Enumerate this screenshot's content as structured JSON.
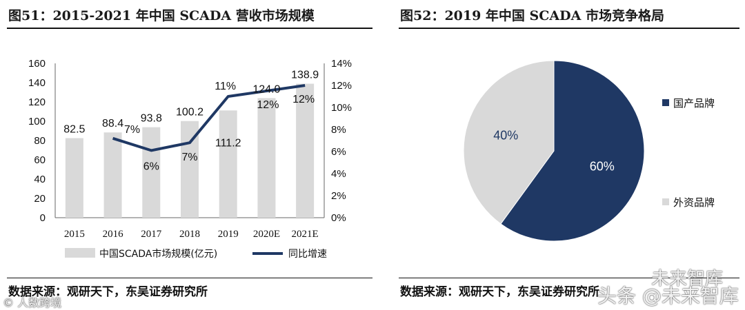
{
  "left_panel": {
    "title": "图51：2015-2021 年中国 SCADA 营收市场规模",
    "source": "数据来源：观研天下，东吴证券研究所"
  },
  "right_panel": {
    "title": "图52：2019 年中国 SCADA 市场竞争格局",
    "source": "数据来源：观研天下，东吴证券研究所"
  },
  "watermarks": {
    "left": "© 人数跨境",
    "top_right": "未来智库",
    "bottom_right": "头条 @未来智库"
  },
  "colors": {
    "bar": "#d9d9d9",
    "line": "#1f3864",
    "pie_domestic": "#1f3864",
    "pie_foreign": "#d9d9d9"
  },
  "chart_data": [
    {
      "type": "bar",
      "title": "2015-2021 年中国 SCADA 营收市场规模",
      "categories": [
        "2015",
        "2016",
        "2017",
        "2018",
        "2019",
        "2020E",
        "2021E"
      ],
      "series": [
        {
          "name": "中国SCADA市场规模(亿元)",
          "type": "bar",
          "axis": "left",
          "values": [
            82.5,
            88.4,
            93.8,
            100.2,
            111.2,
            124.0,
            138.9
          ],
          "labels": [
            "82.5",
            "88.4",
            "93.8",
            "100.2",
            "111.2",
            "124.0",
            "138.9"
          ]
        },
        {
          "name": "同比增速",
          "type": "line",
          "axis": "right",
          "values": [
            null,
            7.2,
            6.1,
            6.8,
            11.0,
            11.5,
            12.0
          ],
          "labels": [
            "",
            "7%",
            "6%",
            "7%",
            "11%",
            "12%",
            "12%"
          ]
        }
      ],
      "y_left": {
        "min": 0,
        "max": 160,
        "ticks": [
          "0",
          "20",
          "40",
          "60",
          "80",
          "100",
          "120",
          "140",
          "160"
        ]
      },
      "y_right": {
        "min": 0,
        "max": 14,
        "ticks": [
          "0%",
          "2%",
          "4%",
          "6%",
          "8%",
          "10%",
          "12%",
          "14%"
        ]
      },
      "legend_position": "bottom",
      "grid": false
    },
    {
      "type": "pie",
      "title": "2019 年中国 SCADA 市场竞争格局",
      "slices": [
        {
          "name": "国产品牌",
          "value": 60,
          "label": "60%"
        },
        {
          "name": "外资品牌",
          "value": 40,
          "label": "40%"
        }
      ],
      "legend_position": "right"
    }
  ]
}
